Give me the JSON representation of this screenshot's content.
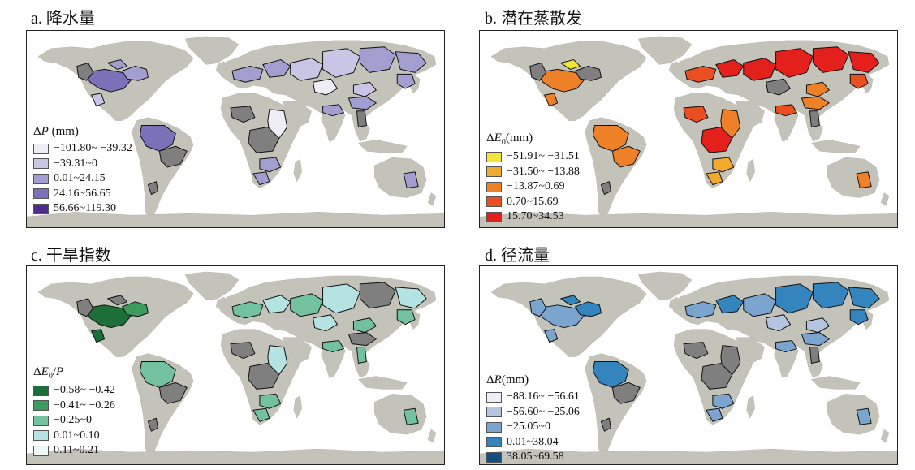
{
  "panels": [
    {
      "id": "a",
      "title": "a. 降水量",
      "legend_symbol": "Δ",
      "legend_var": "P",
      "legend_sub": "",
      "legend_suffix": " (mm)",
      "classes": [
        {
          "label": "−101.80~ −39.32",
          "color": "#efeef7"
        },
        {
          "label": "−39.31~0",
          "color": "#c8c6e4"
        },
        {
          "label": "0.01~24.15",
          "color": "#a29fd0"
        },
        {
          "label": "24.16~56.65",
          "color": "#7b71b9"
        },
        {
          "label": "56.66~119.30",
          "color": "#4d2c8c"
        }
      ]
    },
    {
      "id": "b",
      "title": "b. 潜在蒸散发",
      "legend_symbol": "Δ",
      "legend_var": "E",
      "legend_sub": "0",
      "legend_suffix": "(mm)",
      "classes": [
        {
          "label": "−51.91~ −31.51",
          "color": "#f2e534"
        },
        {
          "label": "−31.50~ −13.88",
          "color": "#f2aa2e"
        },
        {
          "label": "−13.87~0.69",
          "color": "#ee8128"
        },
        {
          "label": "0.70~15.69",
          "color": "#ea4f22"
        },
        {
          "label": "15.70~34.53",
          "color": "#e3201b"
        }
      ]
    },
    {
      "id": "c",
      "title": "c. 干旱指数",
      "legend_symbol": "Δ",
      "legend_var": "E",
      "legend_sub": "0",
      "legend_suffix": "/P",
      "classes": [
        {
          "label": "−0.58~ −0.42",
          "color": "#1e6e3a"
        },
        {
          "label": "−0.41~ −0.26",
          "color": "#3c9c5d"
        },
        {
          "label": "−0.25~0",
          "color": "#72c2a0"
        },
        {
          "label": "0.01~0.10",
          "color": "#b5e2e2"
        },
        {
          "label": "0.11~0.21",
          "color": "#eef8f6"
        }
      ]
    },
    {
      "id": "d",
      "title": "d. 径流量",
      "legend_symbol": "Δ",
      "legend_var": "R",
      "legend_sub": "",
      "legend_suffix": "(mm)",
      "classes": [
        {
          "label": "−88.16~ −56.61",
          "color": "#eeeef5"
        },
        {
          "label": "−56.60~ −25.06",
          "color": "#b3c5e0"
        },
        {
          "label": "−25.05~0",
          "color": "#7ba5cf"
        },
        {
          "label": "0.01~38.04",
          "color": "#3484bd"
        },
        {
          "label": "38.05~69.58",
          "color": "#14507f"
        }
      ]
    }
  ],
  "colors": {
    "land": "#c4c3ba",
    "ocean": "#ffffff",
    "nonsignificant_basin": "#7f7f7f",
    "basin_outline": "#111111"
  }
}
